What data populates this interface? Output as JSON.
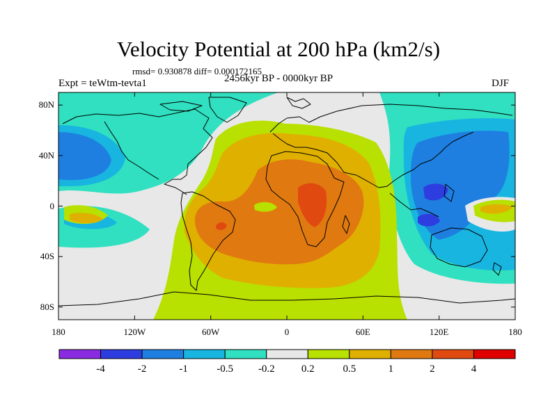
{
  "header": {
    "title": "Velocity Potential at 200 hPa (km2/s)",
    "stats": "rmsd= 0.930878 diff= 0.000172165",
    "experiment": "Expt = teWtm-tevta1",
    "period": "2456kyr BP - 0000kyr BP",
    "season": "DJF"
  },
  "map": {
    "projection": "cylindrical equidistant",
    "lon_range": [
      -180,
      180
    ],
    "lat_range": [
      -90,
      90
    ],
    "lat_ticks": [
      {
        "value": 80,
        "label": "80N"
      },
      {
        "value": 40,
        "label": "40N"
      },
      {
        "value": 0,
        "label": "0"
      },
      {
        "value": -40,
        "label": "40S"
      },
      {
        "value": -80,
        "label": "80S"
      }
    ],
    "lon_ticks": [
      {
        "value": -180,
        "label": "180"
      },
      {
        "value": -120,
        "label": "120W"
      },
      {
        "value": -60,
        "label": "60W"
      },
      {
        "value": 0,
        "label": "0"
      },
      {
        "value": 60,
        "label": "60E"
      },
      {
        "value": 120,
        "label": "120E"
      },
      {
        "value": 180,
        "label": "180"
      }
    ]
  },
  "colorbar": {
    "levels": [
      "-4",
      "-2",
      "-1",
      "-0.5",
      "-0.2",
      "0.2",
      "0.5",
      "1",
      "2",
      "4"
    ],
    "colors": [
      "#8a2be2",
      "#2e3de0",
      "#1e7fe0",
      "#18b5e0",
      "#30e0c0",
      "#e8e8e8",
      "#b8e000",
      "#e0b000",
      "#e07a10",
      "#e04a10",
      "#e00000"
    ]
  },
  "palette": {
    "neg1": "#1e7fe0",
    "neg05": "#18b5e0",
    "neg02": "#30e0c0",
    "neu": "#e8e8e8",
    "pos02": "#b8e000",
    "pos05": "#e0b000",
    "pos1": "#e07a10",
    "pos2": "#e04a10",
    "neg2": "#2e3de0"
  }
}
